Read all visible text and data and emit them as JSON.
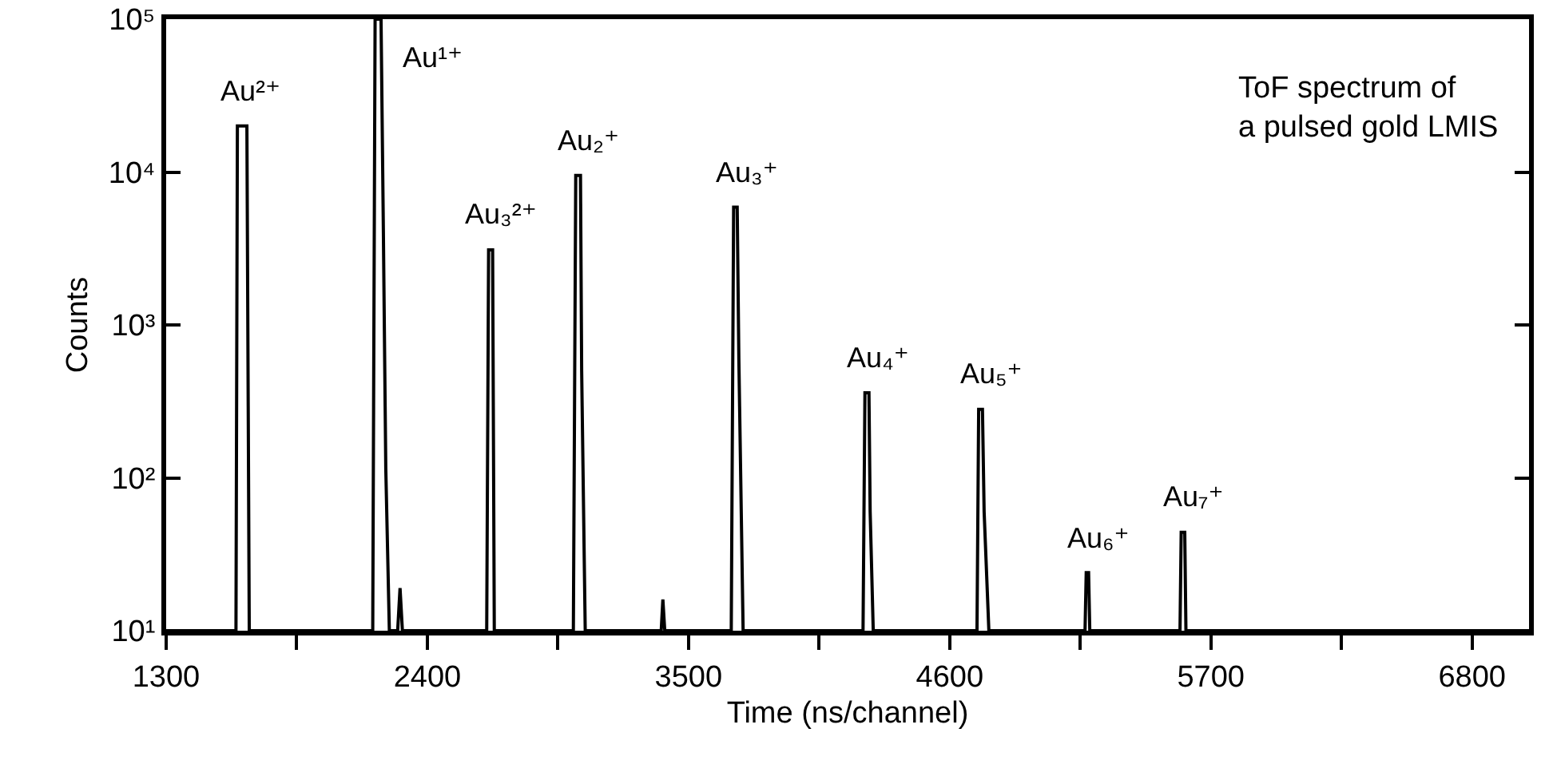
{
  "chart_data": {
    "type": "line",
    "xlabel": "Time (ns/channel)",
    "ylabel": "Counts",
    "x": [
      1300,
      1594,
      1600,
      1640,
      1650,
      2170,
      2180,
      2205,
      2215,
      2225,
      2240,
      2275,
      2285,
      2295,
      2650,
      2658,
      2675,
      2682,
      3015,
      3025,
      3045,
      3050,
      3065,
      3385,
      3392,
      3400,
      3680,
      3690,
      3705,
      3712,
      3730,
      4235,
      4243,
      4260,
      4265,
      4278,
      4715,
      4722,
      4738,
      4745,
      4765,
      5170,
      5175,
      5185,
      5190,
      5570,
      5575,
      5590,
      5595,
      7040
    ],
    "series": [
      {
        "color": "#000000",
        "values": [
          10,
          10,
          20000,
          20000,
          10,
          10,
          100000,
          100000,
          3900,
          115,
          10,
          10,
          19,
          10,
          10,
          3100,
          3100,
          10,
          10,
          9500,
          9500,
          500,
          10,
          10,
          16,
          10,
          10,
          5900,
          5900,
          600,
          10,
          10,
          360,
          360,
          60,
          10,
          10,
          280,
          280,
          60,
          10,
          10,
          24,
          24,
          10,
          10,
          44,
          44,
          10,
          10
        ]
      }
    ],
    "log": "y",
    "grid": false,
    "marker": "none",
    "line_style": "solid",
    "xlim": [
      1300,
      7040
    ],
    "ylim": [
      10,
      100000
    ],
    "xticks": [
      1300,
      {
        "value": 1850,
        "label": null
      },
      2400,
      {
        "value": 2950,
        "label": null
      },
      3500,
      {
        "value": 4050,
        "label": null
      },
      4600,
      {
        "value": 5150,
        "label": null
      },
      5700,
      {
        "value": 6250,
        "label": null
      },
      6800
    ],
    "yticks": [
      {
        "value": 10,
        "label": "10¹"
      },
      {
        "value": 100,
        "label": "10²"
      },
      {
        "value": 1000,
        "label": "10³"
      },
      {
        "value": 10000,
        "label": "10⁴"
      },
      {
        "value": 100000,
        "label": "10⁵"
      }
    ],
    "annotations": [
      {
        "text": "Au²⁺",
        "x": 1600,
        "y": 20000
      },
      {
        "text": "Au¹⁺",
        "x": 2205,
        "y": 100000
      },
      {
        "text": "Au₃²⁺",
        "x": 2658,
        "y": 3100
      },
      {
        "text": "Au₂⁺",
        "x": 3025,
        "y": 9500
      },
      {
        "text": "Au₃⁺",
        "x": 3690,
        "y": 5900
      },
      {
        "text": "Au₄⁺",
        "x": 4243,
        "y": 360
      },
      {
        "text": "Au₅⁺",
        "x": 4722,
        "y": 280
      },
      {
        "text": "Au₆⁺",
        "x": 5175,
        "y": 24
      },
      {
        "text": "Au₇⁺",
        "x": 5575,
        "y": 44
      },
      "ToF spectrum of\na pulsed gold LMIS"
    ]
  }
}
